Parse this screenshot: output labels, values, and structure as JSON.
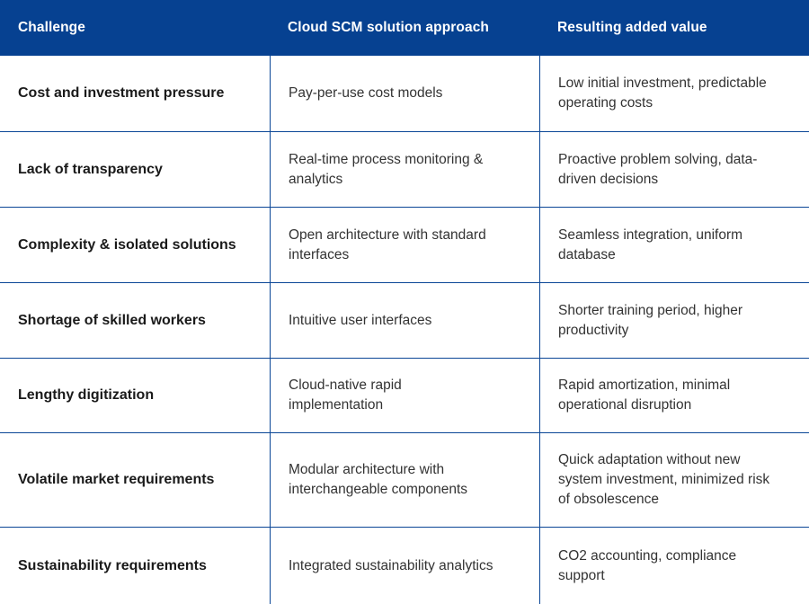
{
  "colors": {
    "header_background": "#064191",
    "border_blue": "#0a4696",
    "header_text": "#ffffff",
    "body_text": "#333333"
  },
  "table": {
    "columns": {
      "challenge": "Challenge",
      "approach": "Cloud SCM solution approach",
      "value": "Resulting added value"
    },
    "rows": [
      {
        "challenge": "Cost and investment pressure",
        "approach": [
          "Pay-per-use cost models"
        ],
        "value": [
          "Low initial investment, predictable",
          "operating costs"
        ]
      },
      {
        "challenge": "Lack of transparency",
        "approach": [
          "Real-time process monitoring &",
          "analytics"
        ],
        "value": [
          "Proactive problem solving, data-",
          "driven decisions"
        ]
      },
      {
        "challenge": "Complexity & isolated solutions",
        "approach": [
          "Open architecture with standard",
          "interfaces"
        ],
        "value": [
          "Seamless integration, uniform",
          "database"
        ]
      },
      {
        "challenge": "Shortage of skilled workers",
        "approach": [
          "Intuitive user interfaces"
        ],
        "value": [
          "Shorter training period, higher",
          "productivity"
        ]
      },
      {
        "challenge": "Lengthy digitization",
        "approach": [
          "Cloud-native rapid",
          "implementation"
        ],
        "value": [
          "Rapid amortization, minimal",
          "operational disruption"
        ]
      },
      {
        "challenge": "Volatile market requirements",
        "approach": [
          "Modular architecture with",
          "interchangeable components"
        ],
        "value": [
          "Quick adaptation without new",
          "system investment, minimized risk",
          "of obsolescence"
        ]
      },
      {
        "challenge": "Sustainability requirements",
        "approach": [
          "Integrated sustainability analytics"
        ],
        "value": [
          "CO2 accounting, compliance",
          "support"
        ]
      }
    ]
  }
}
